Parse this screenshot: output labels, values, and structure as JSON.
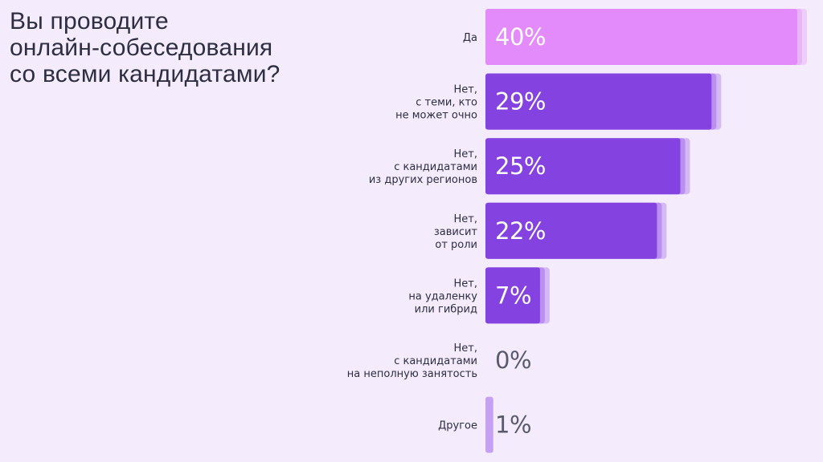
{
  "chart_data": {
    "type": "bar",
    "orientation": "horizontal",
    "title": [
      "Вы проводите",
      "онлайн-собеседования",
      "со всеми кандидатами?"
    ],
    "categories": [
      [
        "Да"
      ],
      [
        "Нет,",
        "с теми, кто",
        "не может очно"
      ],
      [
        "Нет,",
        "с кандидатами",
        "из других регионов"
      ],
      [
        "Нет,",
        "зависит",
        "от роли"
      ],
      [
        "Нет,",
        "на удаленку",
        "или гибрид"
      ],
      [
        "Нет,",
        "с кандидатами",
        "на неполную занятость"
      ],
      [
        "Другое"
      ]
    ],
    "values": [
      40,
      29,
      25,
      22,
      7,
      0,
      1
    ],
    "value_labels": [
      "40%",
      "29%",
      "25%",
      "22%",
      "7%",
      "0%",
      "1%"
    ],
    "unit": "%",
    "xlim": [
      0,
      40
    ],
    "colors": {
      "highlight_bar": "#e38bfb",
      "highlight_bar_shadow": "#e8b6f7",
      "bar": "#8442e0",
      "bar_shadow": "#b98fef",
      "small_bar": "#c5a0f3",
      "value_on_bar": "#ffffff",
      "value_outside": "#5a5a6e",
      "background": "#f4ecfc",
      "text": "#2e2e42"
    }
  }
}
